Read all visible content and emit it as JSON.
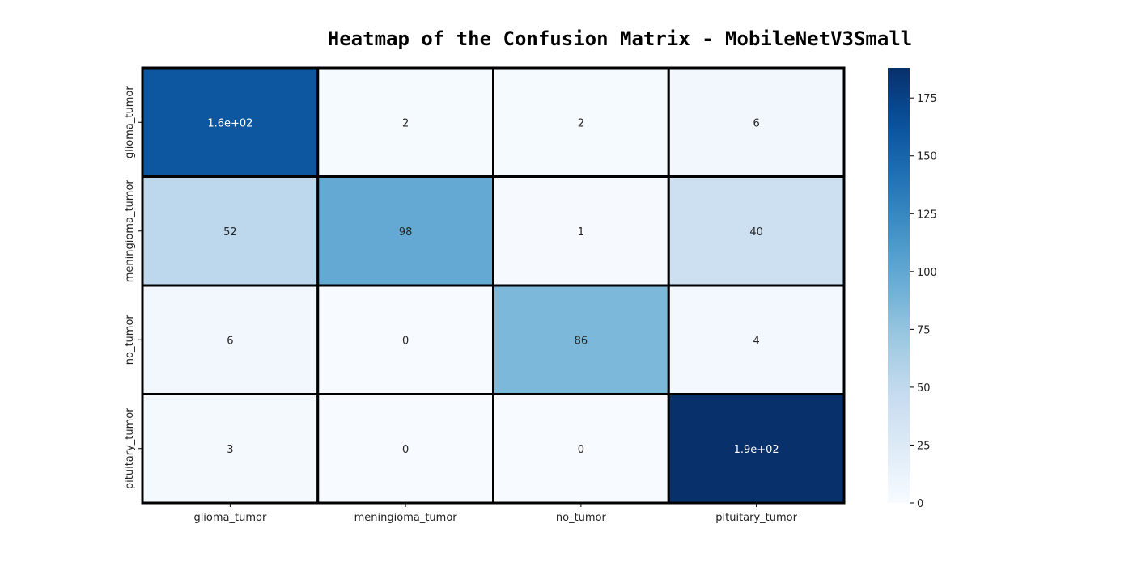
{
  "chart_data": {
    "type": "heatmap",
    "title": "Heatmap of the Confusion Matrix - MobileNetV3Small",
    "row_labels": [
      "glioma_tumor",
      "meningioma_tumor",
      "no_tumor",
      "pituitary_tumor"
    ],
    "col_labels": [
      "glioma_tumor",
      "meningioma_tumor",
      "no_tumor",
      "pituitary_tumor"
    ],
    "values": [
      [
        160,
        2,
        2,
        6
      ],
      [
        52,
        98,
        1,
        40
      ],
      [
        6,
        0,
        86,
        4
      ],
      [
        3,
        0,
        0,
        188
      ]
    ],
    "annotations": [
      [
        "1.6e+02",
        "2",
        "2",
        "6"
      ],
      [
        "52",
        "98",
        "1",
        "40"
      ],
      [
        "6",
        "0",
        "86",
        "4"
      ],
      [
        "3",
        "0",
        "0",
        "1.9e+02"
      ]
    ],
    "colormap": "Blues",
    "colorbar": {
      "range": [
        0,
        188
      ],
      "ticks": [
        0,
        25,
        50,
        75,
        100,
        125,
        150,
        175
      ]
    },
    "colors": {
      "low": "#f7fbff",
      "high": "#08306b",
      "cell_border": "#000000"
    }
  }
}
